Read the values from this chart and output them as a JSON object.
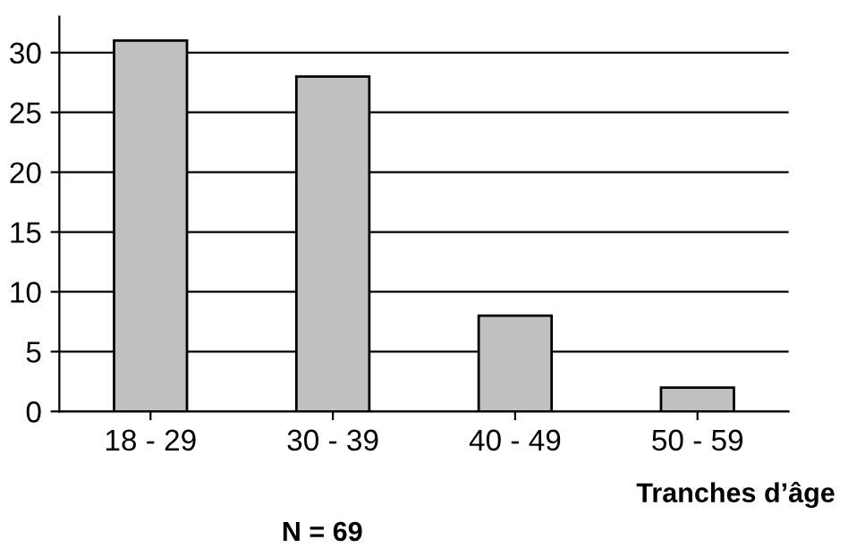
{
  "chart_data": {
    "type": "bar",
    "categories": [
      "18 - 29",
      "30 - 39",
      "40 - 49",
      "50 - 59"
    ],
    "values": [
      31,
      28,
      8,
      2
    ],
    "color": "#c0c0c0",
    "ylim": [
      0,
      33
    ],
    "yticks": [
      0,
      5,
      10,
      15,
      20,
      25,
      30
    ],
    "grid": "y",
    "xlabel": "Tranches d’âge",
    "annotations": [
      "N = 69"
    ]
  }
}
